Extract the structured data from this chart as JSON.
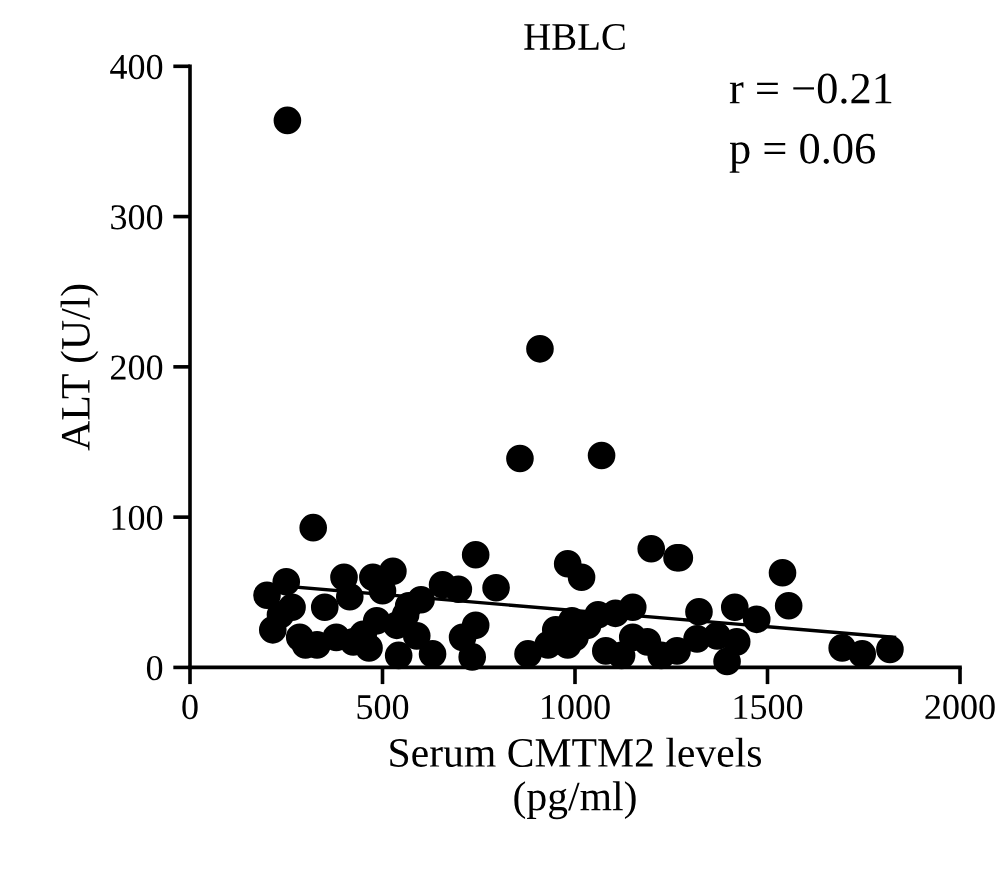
{
  "chart_data": {
    "type": "scatter",
    "title": "HBLC",
    "xlabel": "Serum CMTM2 levels\n(pg/ml)",
    "ylabel": "ALT (U/l)",
    "annotations": [
      "r = −0.21",
      "p = 0.06"
    ],
    "xlim": [
      0,
      2000
    ],
    "xticks": [
      0,
      500,
      1000,
      1500,
      2000
    ],
    "ylim": [
      0,
      400
    ],
    "yticks": [
      0,
      100,
      200,
      300,
      400
    ],
    "grid": false,
    "legend": false,
    "series": [
      {
        "marker": "circle",
        "color": "#000000",
        "x": [
          253,
          909,
          857,
          1069,
          200,
          215,
          235,
          250,
          265,
          285,
          300,
          320,
          330,
          350,
          380,
          400,
          742,
          795,
          656,
          697,
          981,
          1017,
          1198,
          1265,
          1105,
          1150,
          415,
          475,
          527,
          500,
          568,
          485,
          537,
          589,
          424,
          465,
          542,
          630,
          742,
          708,
          733,
          878,
          930,
          992,
          1033,
          981,
          1080,
          1121,
          1188,
          1271,
          1539,
          1555,
          1322,
          1415,
          1472,
          1317,
          1369,
          1420,
          1395,
          1265,
          1224,
          1694,
          1746,
          1818,
          450,
          560,
          600,
          1000,
          950,
          1060,
          1150
        ],
        "values": [
          364,
          212,
          139,
          141,
          48,
          25,
          35,
          57,
          40,
          20,
          15,
          93,
          15,
          40,
          20,
          60,
          75,
          53,
          55,
          52,
          69,
          60,
          79,
          73,
          36,
          40,
          47,
          60,
          64,
          51,
          41,
          31,
          28,
          21,
          17,
          13,
          8,
          9,
          28,
          20,
          7,
          9,
          15,
          31,
          28,
          15,
          11,
          8,
          17,
          73,
          63,
          41,
          37,
          40,
          32,
          19,
          21,
          17,
          4,
          11,
          8,
          13,
          9,
          12,
          22,
          35,
          45,
          20,
          25,
          35,
          20
        ]
      },
      {
        "type": "line",
        "marker": "none",
        "color": "#000000",
        "x": [
          200,
          1830
        ],
        "values": [
          55,
          20
        ]
      }
    ]
  }
}
